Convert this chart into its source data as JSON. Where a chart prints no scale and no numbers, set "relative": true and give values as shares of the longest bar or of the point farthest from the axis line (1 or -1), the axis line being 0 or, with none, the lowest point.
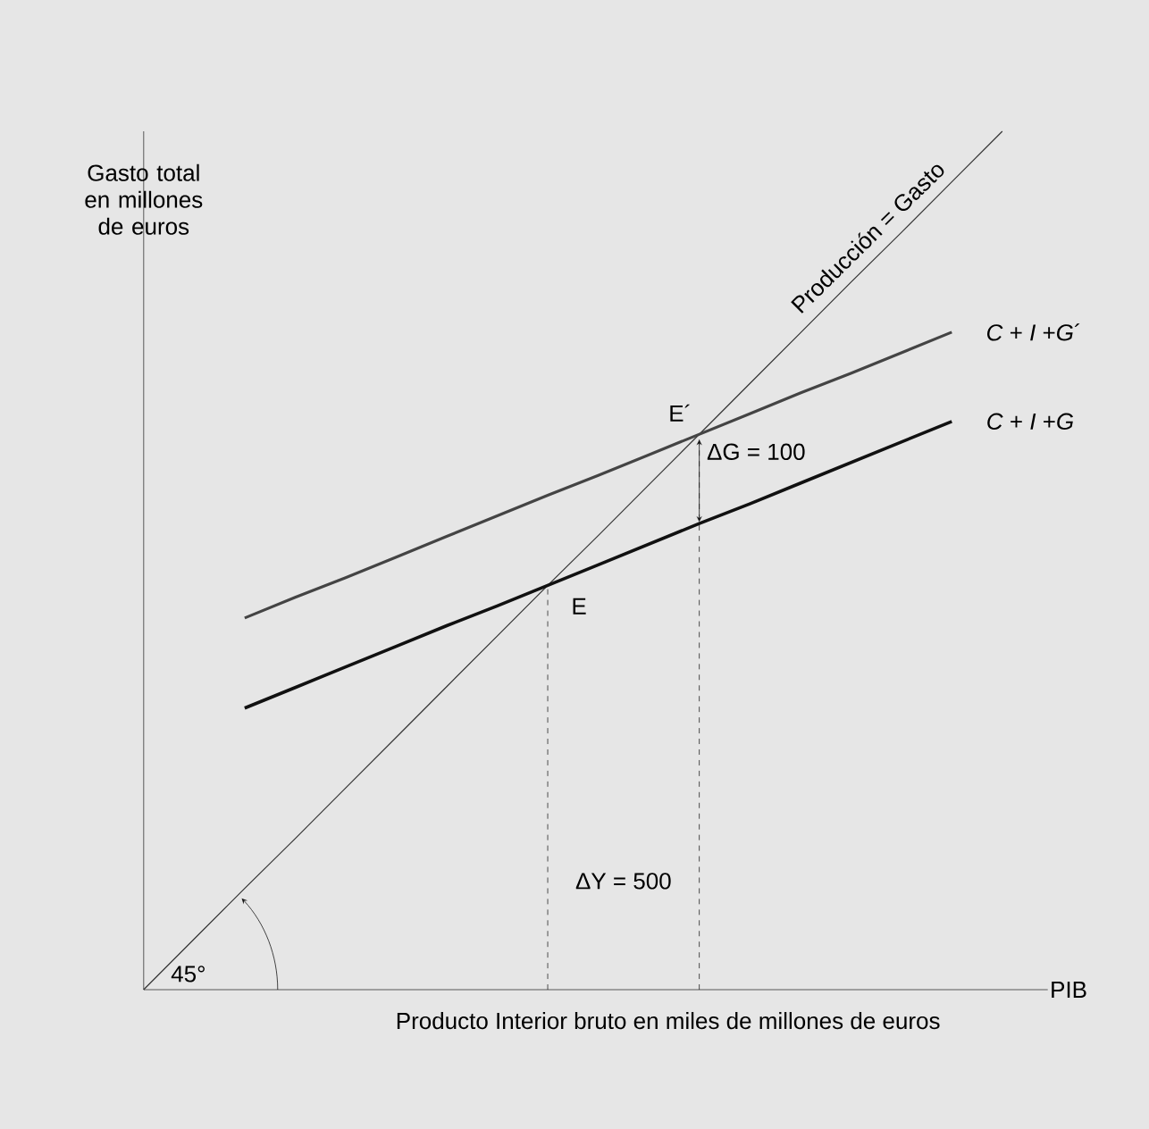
{
  "chart_data": {
    "type": "line",
    "relative": true,
    "xlabel": "Producto Interior bruto en miles de millones de euros",
    "ylabel": "Gasto total en millones de euros",
    "categories": [
      null,
      null,
      null,
      null,
      null,
      null,
      null,
      null,
      null,
      null,
      null,
      null,
      null,
      null,
      null,
      null,
      null,
      null
    ],
    "series": [
      {
        "name": "Producción = Gasto",
        "color": "#333333",
        "values": [
          0,
          0.059,
          0.118,
          0.176,
          0.235,
          0.294,
          0.353,
          0.412,
          0.471,
          0.529,
          0.588,
          0.647,
          0.706,
          0.765,
          0.824,
          0.882,
          0.941,
          1.0
        ]
      },
      {
        "name": "*C* + *I* +*G*´",
        "color": "#444444",
        "values": [
          null,
          null,
          0.433,
          0.457,
          0.48,
          0.504,
          0.528,
          0.552,
          0.576,
          0.599,
          0.623,
          0.647,
          0.671,
          0.695,
          0.718,
          0.742,
          0.766,
          null
        ]
      },
      {
        "name": "*C* + *I* +*G*",
        "color": "#111111",
        "values": [
          null,
          null,
          0.328,
          0.352,
          0.376,
          0.4,
          0.424,
          0.447,
          0.471,
          0.495,
          0.519,
          0.543,
          0.566,
          0.59,
          0.614,
          0.638,
          0.662,
          null
        ]
      }
    ],
    "annotations": [
      "E´",
      "ΔG = 100",
      "E",
      "ΔY = 500",
      "45°",
      "PIB"
    ]
  }
}
